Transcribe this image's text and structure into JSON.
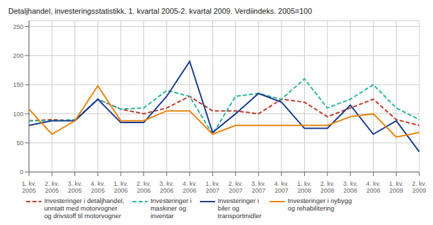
{
  "chart_data": {
    "type": "line",
    "title": "Detaljhandel, investeringsstatistikk. 1. kvartal 2005-2. kvartal 2009. Verdiindeks. 2005=100",
    "categories": [
      "1. kv.\n2005",
      "2. kv.\n2005",
      "3. kv.\n2005",
      "4. kv.\n2005",
      "1. kv.\n2006",
      "2. kv.\n2006",
      "3. kv.\n2006",
      "4. kv.\n2006",
      "1. kv.\n2007",
      "2. kv.\n2007",
      "3. kv.\n2007",
      "4. kv.\n2007",
      "1. kv.\n2008",
      "2. kv.\n2008",
      "3. kv.\n2008",
      "4. kv.\n2008",
      "1. kv.\n2009",
      "2. kv.\n2009"
    ],
    "series": [
      {
        "name": "Investeringer i detaljhandel,\nunntatt med motorvogner\nog drivstoff til motorvogner",
        "color": "#c0392b",
        "line_style": "dashed",
        "values": [
          88,
          90,
          88,
          125,
          108,
          100,
          110,
          130,
          105,
          105,
          100,
          125,
          120,
          95,
          110,
          125,
          90,
          80
        ]
      },
      {
        "name": "Investeringer i\nmaskiner og\ninventar",
        "color": "#2ab5a0",
        "line_style": "dashed",
        "values": [
          88,
          88,
          90,
          125,
          108,
          110,
          140,
          130,
          65,
          130,
          135,
          125,
          160,
          110,
          125,
          150,
          110,
          90
        ]
      },
      {
        "name": "Investeringer i\nbiler og\ntransportmidler",
        "color": "#1a3a8c",
        "line_style": "solid",
        "values": [
          80,
          88,
          88,
          125,
          85,
          85,
          130,
          190,
          68,
          100,
          135,
          120,
          75,
          75,
          115,
          65,
          88,
          35
        ]
      },
      {
        "name": "Investeringer i nybygg\nog rehabilitering",
        "color": "#e8820a",
        "line_style": "solid",
        "values": [
          108,
          65,
          88,
          148,
          88,
          88,
          105,
          105,
          65,
          80,
          80,
          80,
          80,
          80,
          95,
          100,
          60,
          68
        ]
      }
    ],
    "ylim": [
      0,
      260
    ],
    "yticks": [
      0,
      50,
      100,
      150,
      200,
      250
    ],
    "grid": true,
    "legend": "bottom"
  }
}
